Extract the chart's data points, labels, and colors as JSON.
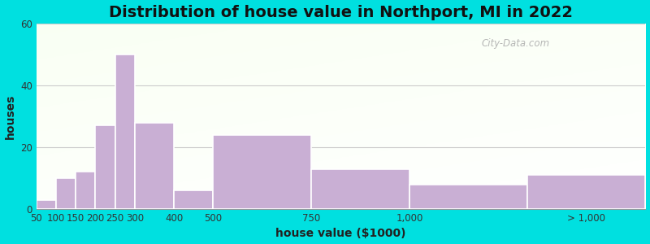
{
  "title": "Distribution of house value in Northport, MI in 2022",
  "xlabel": "house value ($1000)",
  "ylabel": "houses",
  "bar_color": "#c9afd4",
  "bar_edge_color": "#ffffff",
  "background_outer": "#00e0e0",
  "ylim": [
    0,
    60
  ],
  "yticks": [
    0,
    20,
    40,
    60
  ],
  "bar_lefts": [
    50,
    100,
    150,
    200,
    250,
    300,
    400,
    500,
    750,
    1000,
    1300
  ],
  "bar_rights": [
    100,
    150,
    200,
    250,
    300,
    400,
    500,
    750,
    1000,
    1300,
    1600
  ],
  "bar_heights": [
    3,
    10,
    12,
    27,
    50,
    28,
    6,
    24,
    13,
    8,
    11
  ],
  "xtick_labels": [
    "50",
    "100",
    "150",
    "200",
    "250",
    "300",
    "400",
    "500",
    "750",
    "1,000",
    "> 1,000"
  ],
  "xtick_positions": [
    50,
    100,
    150,
    200,
    250,
    300,
    400,
    500,
    750,
    1000,
    1450
  ],
  "xlim": [
    50,
    1600
  ],
  "title_fontsize": 14,
  "axis_label_fontsize": 10,
  "tick_fontsize": 8.5,
  "grid_color": "#cccccc",
  "watermark_text": "City-Data.com"
}
